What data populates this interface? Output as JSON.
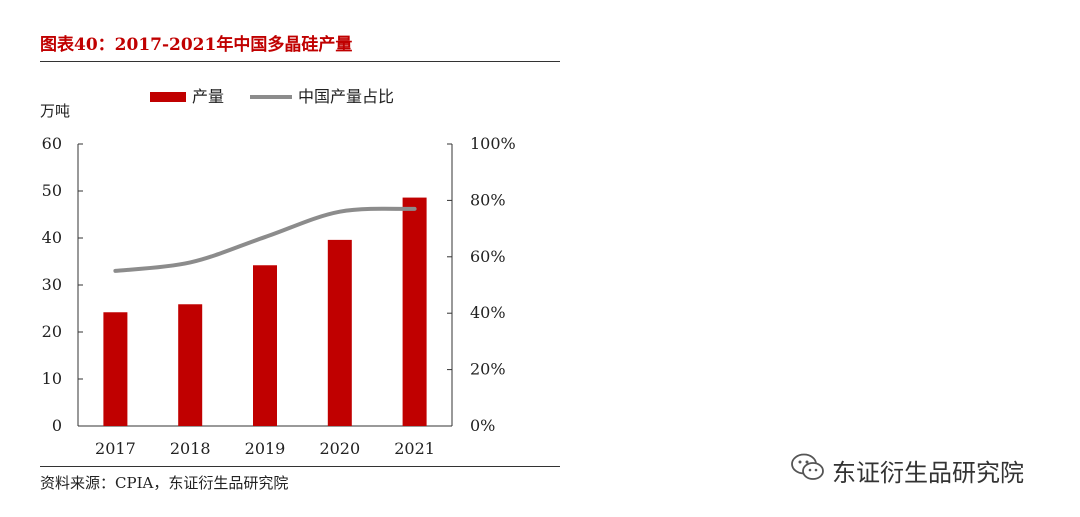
{
  "figure": {
    "title": "图表40：2017-2021年中国多晶硅产量",
    "source": "资料来源：CPIA，东证衍生品研究院"
  },
  "watermark": {
    "icon": "wechat-icon",
    "text": "东证衍生品研究院"
  },
  "colors": {
    "bar": "#c00000",
    "line": "#8c8c8c",
    "title": "#c00000"
  },
  "chart_data": {
    "type": "bar",
    "categories": [
      "2017",
      "2018",
      "2019",
      "2020",
      "2021"
    ],
    "series": [
      {
        "name": "产量",
        "type": "bar",
        "axis": "left",
        "values": [
          24.2,
          25.9,
          34.2,
          39.6,
          48.6
        ]
      },
      {
        "name": "中国产量占比",
        "type": "line",
        "axis": "right",
        "values": [
          0.55,
          0.58,
          0.67,
          0.76,
          0.77
        ]
      }
    ],
    "ylabel": "万吨",
    "ylim": [
      0,
      60
    ],
    "yticks": [
      "0",
      "10",
      "20",
      "30",
      "40",
      "50",
      "60"
    ],
    "y2lim": [
      0,
      1
    ],
    "y2ticks": [
      "0%",
      "20%",
      "40%",
      "60%",
      "80%",
      "100%"
    ],
    "legend_position": "top",
    "grid": false
  }
}
